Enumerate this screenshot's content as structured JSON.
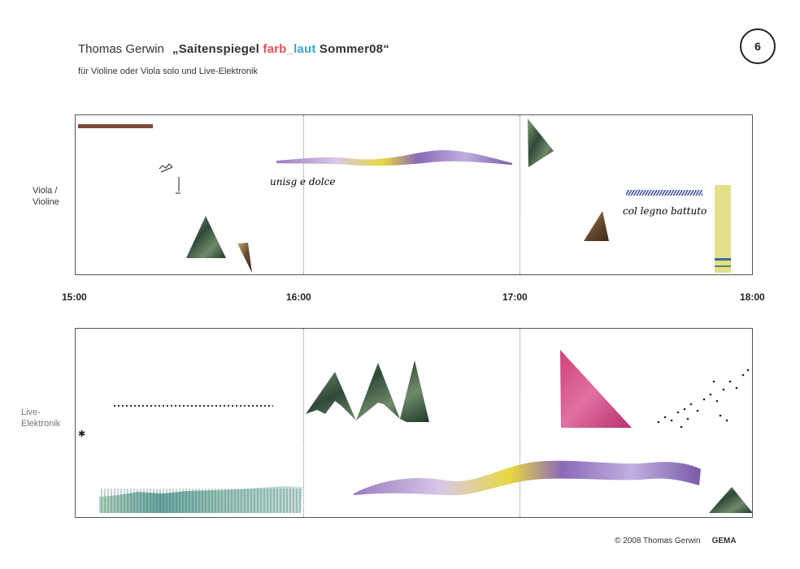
{
  "header": {
    "composer": "Thomas Gerwin",
    "title_open": "„Saitenspiegel ",
    "title_farb": "farb",
    "title_underscore": "_",
    "title_laut": "laut",
    "title_close": " Sommer08“",
    "subtitle": "für Violine oder Viola solo und Live-Elektronik",
    "page_number": "6"
  },
  "colors": {
    "farb": "#e0505a",
    "laut": "#3aa6c8",
    "underscore": "#e0b040"
  },
  "staves": {
    "upper_label_line1": "Viola /",
    "upper_label_line2": "Violine",
    "lower_label_line1": "Live-",
    "lower_label_line2": "Elektronik"
  },
  "annotations": {
    "dolce": "unisg e dolce",
    "tremolo": "col legno battuto"
  },
  "timeline": [
    "15:00",
    "16:00",
    "17:00",
    "18:00"
  ],
  "footer": {
    "copyright": "© 2008 Thomas Gerwin",
    "gema": "GEMA"
  }
}
